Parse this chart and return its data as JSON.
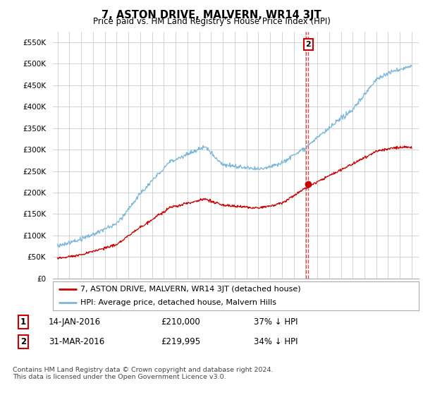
{
  "title": "7, ASTON DRIVE, MALVERN, WR14 3JT",
  "subtitle": "Price paid vs. HM Land Registry's House Price Index (HPI)",
  "hpi_color": "#7ab8d9",
  "price_color": "#cc0000",
  "dashed_color": "#cc0000",
  "sale1_x": 2016.04,
  "sale1_y": 210000,
  "sale2_x": 2016.25,
  "sale2_y": 219995,
  "legend_label_red": "7, ASTON DRIVE, MALVERN, WR14 3JT (detached house)",
  "legend_label_blue": "HPI: Average price, detached house, Malvern Hills",
  "table_row1": [
    "1",
    "14-JAN-2016",
    "£210,000",
    "37% ↓ HPI"
  ],
  "table_row2": [
    "2",
    "31-MAR-2016",
    "£219,995",
    "34% ↓ HPI"
  ],
  "footer": "Contains HM Land Registry data © Crown copyright and database right 2024.\nThis data is licensed under the Open Government Licence v3.0.",
  "background_color": "#ffffff",
  "grid_color": "#cccccc",
  "yticks": [
    0,
    50000,
    100000,
    150000,
    200000,
    250000,
    300000,
    350000,
    400000,
    450000,
    500000,
    550000
  ],
  "ylabels": [
    "£0",
    "£50K",
    "£100K",
    "£150K",
    "£200K",
    "£250K",
    "£300K",
    "£350K",
    "£400K",
    "£450K",
    "£500K",
    "£550K"
  ],
  "ylim": [
    0,
    575000
  ],
  "xlim": [
    1994.6,
    2025.6
  ]
}
